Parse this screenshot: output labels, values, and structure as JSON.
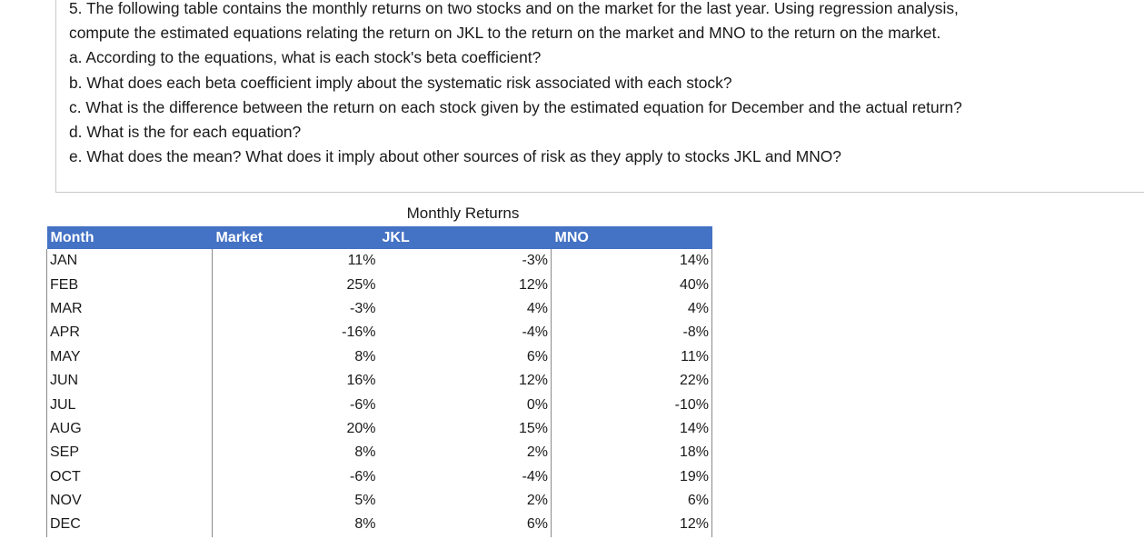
{
  "question": {
    "lines": [
      "5. The following table contains the monthly returns on two stocks and on the market for the last year. Using regression analysis,",
      "compute the estimated equations relating the return on JKL to the return on the market and MNO to the return on the market.",
      "a. According to the equations, what is each stock's beta coefficient?",
      "b. What does each beta coefficient imply about the systematic risk associated with each stock?",
      "c. What is the difference between the return on each stock given by the estimated equation for December and the actual return?",
      "d. What is the  for each equation?",
      "e. What does the  mean? What does it imply about other sources of risk as they apply to stocks JKL and MNO?"
    ]
  },
  "table": {
    "caption": "Monthly Returns",
    "headers": [
      "Month",
      "Market",
      "JKL",
      "MNO"
    ],
    "rows": [
      [
        "JAN",
        "11%",
        "-3%",
        "14%"
      ],
      [
        "FEB",
        "25%",
        "12%",
        "40%"
      ],
      [
        "MAR",
        "-3%",
        "4%",
        "4%"
      ],
      [
        "APR",
        "-16%",
        "-4%",
        "-8%"
      ],
      [
        "MAY",
        "8%",
        "6%",
        "11%"
      ],
      [
        "JUN",
        "16%",
        "12%",
        "22%"
      ],
      [
        "JUL",
        "-6%",
        "0%",
        "-10%"
      ],
      [
        "AUG",
        "20%",
        "15%",
        "14%"
      ],
      [
        "SEP",
        "8%",
        "2%",
        "18%"
      ],
      [
        "OCT",
        "-6%",
        "-4%",
        "19%"
      ],
      [
        "NOV",
        "5%",
        "2%",
        "6%"
      ],
      [
        "DEC",
        "8%",
        "6%",
        "12%"
      ]
    ]
  },
  "colors": {
    "header_bg": "#4472c4",
    "header_text": "#ffffff"
  }
}
